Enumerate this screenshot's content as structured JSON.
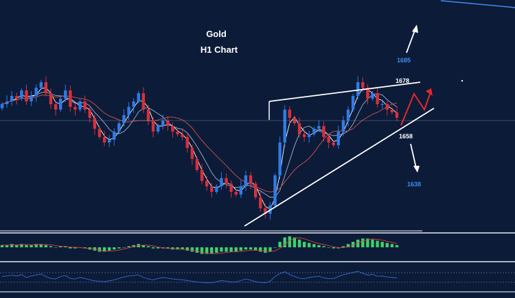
{
  "chart_data": {
    "type": "candlestick",
    "title": "Gold",
    "subtitle": "H1 Chart",
    "xlabel": "",
    "ylabel": "",
    "grid": false,
    "colors": {
      "background": "#0c1b38",
      "bull": "#2f7be8",
      "bear": "#d8303a",
      "trendline": "#ffffff",
      "projection": "#e8282c",
      "target_label": "#3d8ef0",
      "level_label": "#ffffff",
      "ma_fast": "#ffffff",
      "ma_mid": "#9fb3d8",
      "ma_slow": "#c0504a",
      "histogram": "#3fcf6a",
      "signal": "#e04040",
      "oscillator": "#2f6fd8"
    },
    "ylim": [
      1620,
      1700
    ],
    "levels": [
      {
        "label": "1685",
        "value": 1685,
        "role": "upside target",
        "color": "#3d8ef0"
      },
      {
        "label": "1678",
        "value": 1678,
        "role": "upper trendline",
        "color": "#ffffff"
      },
      {
        "label": "1658",
        "value": 1658,
        "role": "support",
        "color": "#ffffff"
      },
      {
        "label": "1638",
        "value": 1638,
        "role": "downside target",
        "color": "#3d8ef0"
      }
    ],
    "close": [
      1662,
      1663,
      1665,
      1664,
      1667,
      1663,
      1665,
      1668,
      1670,
      1666,
      1662,
      1660,
      1664,
      1667,
      1661,
      1660,
      1663,
      1660,
      1657,
      1653,
      1650,
      1648,
      1649,
      1652,
      1655,
      1658,
      1661,
      1663,
      1666,
      1660,
      1656,
      1652,
      1654,
      1656,
      1654,
      1652,
      1651,
      1650,
      1646,
      1642,
      1638,
      1634,
      1632,
      1630,
      1632,
      1635,
      1633,
      1630,
      1629,
      1632,
      1636,
      1633,
      1628,
      1624,
      1622,
      1625,
      1636,
      1648,
      1660,
      1657,
      1655,
      1651,
      1650,
      1651,
      1653,
      1654,
      1650,
      1648,
      1647,
      1652,
      1656,
      1660,
      1665,
      1670,
      1668,
      1664,
      1666,
      1662,
      1662,
      1660,
      1659,
      1657
    ],
    "indicators": {
      "histogram": [
        2,
        2,
        3,
        2,
        3,
        2,
        2,
        3,
        3,
        2,
        1,
        0,
        1,
        1,
        -1,
        -1,
        0,
        -1,
        -2,
        -3,
        -4,
        -4,
        -3,
        -2,
        -1,
        0,
        1,
        2,
        3,
        2,
        1,
        -1,
        -1,
        -1,
        -1,
        -2,
        -2,
        -2,
        -3,
        -4,
        -5,
        -6,
        -6,
        -6,
        -5,
        -4,
        -4,
        -4,
        -4,
        -3,
        -2,
        -2,
        -3,
        -4,
        -5,
        -4,
        0,
        5,
        9,
        10,
        9,
        7,
        5,
        4,
        3,
        2,
        1,
        0,
        -1,
        -1,
        1,
        3,
        5,
        7,
        8,
        8,
        7,
        6,
        5,
        4,
        3,
        2
      ],
      "oscillator": [
        55,
        58,
        62,
        57,
        65,
        50,
        58,
        63,
        68,
        55,
        45,
        42,
        55,
        60,
        45,
        42,
        50,
        45,
        38,
        32,
        30,
        28,
        32,
        38,
        45,
        52,
        58,
        60,
        64,
        50,
        42,
        38,
        45,
        50,
        46,
        42,
        40,
        38,
        34,
        30,
        26,
        24,
        22,
        22,
        28,
        34,
        30,
        26,
        26,
        34,
        42,
        36,
        28,
        24,
        22,
        30,
        55,
        70,
        80,
        65,
        55,
        46,
        44,
        50,
        54,
        56,
        48,
        44,
        44,
        55,
        64,
        70,
        76,
        82,
        72,
        62,
        66,
        56,
        58,
        52,
        50,
        48
      ]
    }
  }
}
